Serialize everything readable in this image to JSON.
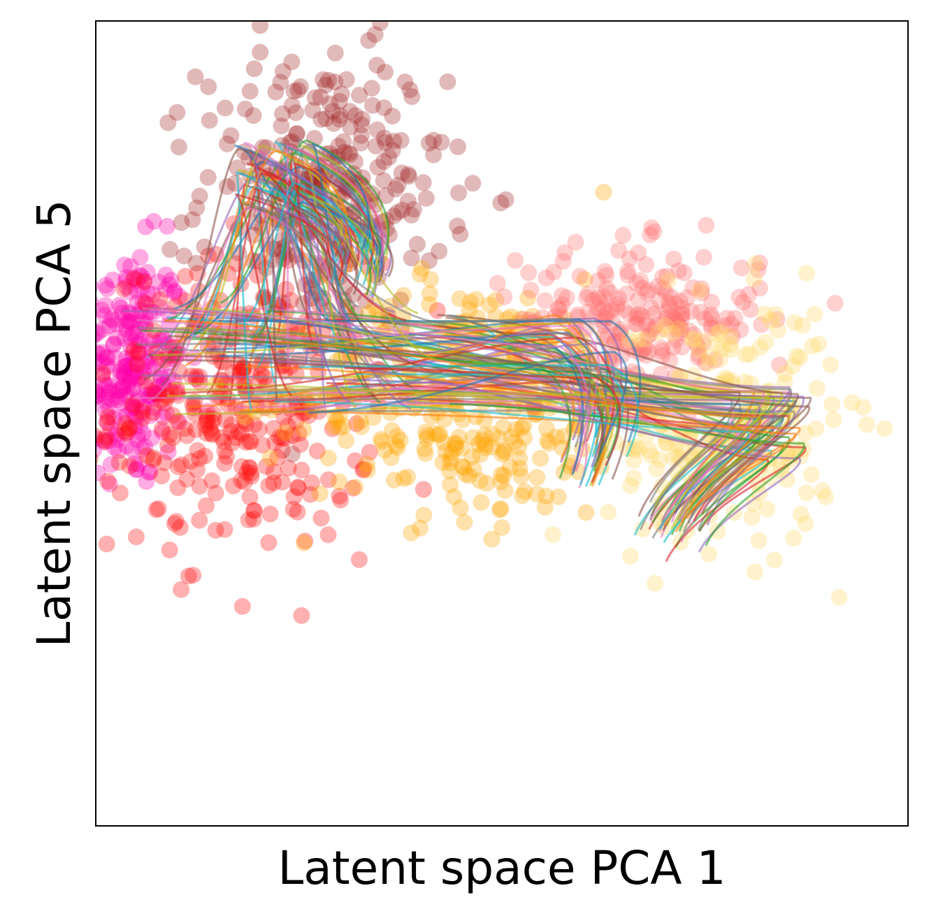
{
  "chart_data": {
    "type": "scatter",
    "title": "",
    "xlabel": "Latent space PCA 1",
    "ylabel": "Latent space PCA 5",
    "xlim": [
      -5.0,
      5.0
    ],
    "ylim": [
      -5.0,
      5.0
    ],
    "grid": false,
    "legend": "none",
    "ticks_shown": false,
    "clusters": [
      {
        "color": "#ff00aa",
        "center": [
          -4.6,
          0.7
        ],
        "spread": [
          0.35,
          0.75
        ],
        "count": 260
      },
      {
        "color": "#ff1010",
        "center": [
          -3.2,
          0.2
        ],
        "spread": [
          0.8,
          0.9
        ],
        "count": 320
      },
      {
        "color": "#a52a2a",
        "center": [
          -2.2,
          2.9
        ],
        "spread": [
          0.75,
          0.85
        ],
        "count": 300
      },
      {
        "color": "#ffa500",
        "center": [
          -0.4,
          0.3
        ],
        "spread": [
          1.0,
          0.75
        ],
        "count": 320
      },
      {
        "color": "#ff6f6f",
        "center": [
          1.7,
          1.3
        ],
        "spread": [
          0.75,
          0.45
        ],
        "count": 220
      },
      {
        "color": "#ffd966",
        "center": [
          2.7,
          0.0
        ],
        "spread": [
          0.7,
          0.75
        ],
        "count": 260
      }
    ],
    "trajectories": {
      "count": 150,
      "start_region": [
        -4.7,
        -0.6,
        0.1,
        1.5
      ],
      "families": [
        {
          "share": 0.32,
          "peak_x": -2.8,
          "peak_y": 3.1,
          "end_x": -1.8,
          "end_y": 1.9
        },
        {
          "share": 0.28,
          "peak_x": 0.9,
          "peak_y": 0.9,
          "end_x": 1.1,
          "end_y": -0.5
        },
        {
          "share": 0.4,
          "peak_x": 3.3,
          "peak_y": 0.0,
          "end_x": 2.1,
          "end_y": -1.3
        }
      ]
    },
    "colors": [
      "#1f77b4",
      "#ff7f0e",
      "#2ca02c",
      "#d62728",
      "#9467bd",
      "#8c564b",
      "#e377c2",
      "#7f7f7f",
      "#bcbd22",
      "#17becf"
    ]
  }
}
